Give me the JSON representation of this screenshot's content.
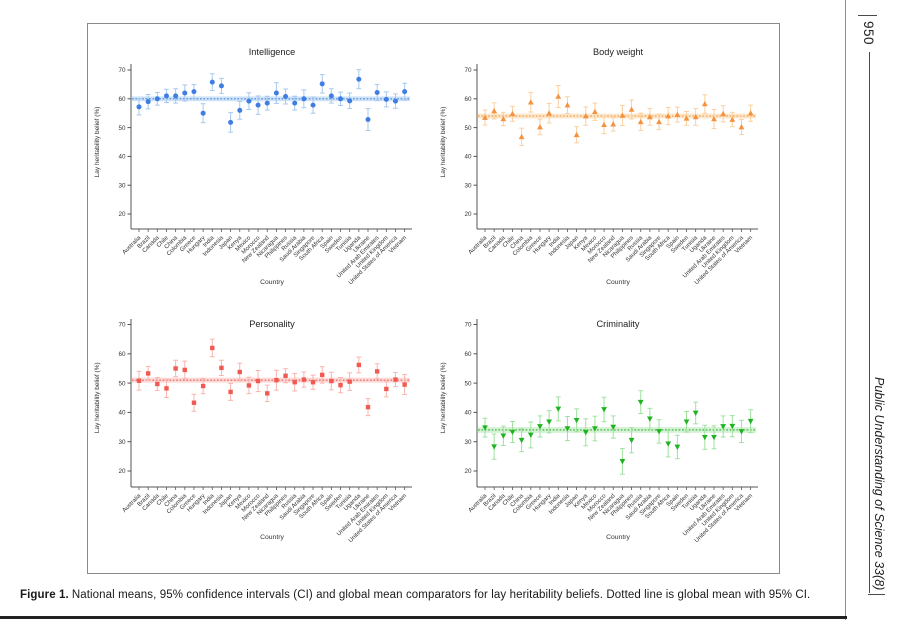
{
  "page": {
    "number": "950",
    "journal_running_title": "Public Understanding of Science 33(8)",
    "caption_label": "Figure 1.",
    "caption_text": "National means, 95% confidence intervals (CI) and global mean comparators for lay heritability beliefs. Dotted line is global mean with 95% CI."
  },
  "chart_data": {
    "type": "scatter",
    "xlabel": "Country",
    "ylabel": "Lay heritability belief (%)",
    "ylim": [
      15,
      74
    ],
    "yticks": [
      20,
      30,
      40,
      50,
      60,
      70
    ],
    "grid": false,
    "legend": false,
    "annotation": "dotted horizontal line = global mean with shaded 95% CI band",
    "categories": [
      "Australia",
      "Brazil",
      "Canada",
      "Chile",
      "China",
      "Colombia",
      "Greece",
      "Hungary",
      "India",
      "Indonesia",
      "Japan",
      "Kenya",
      "Mexico",
      "Morocco",
      "New Zealand",
      "Nicaragua",
      "Philippines",
      "Russia",
      "Saudi Arabia",
      "Singapore",
      "South Africa",
      "Spain",
      "Sweden",
      "Tunisia",
      "Uganda",
      "Ukraine",
      "United Arab Emirates",
      "United Kingdom",
      "United States of America",
      "Vietnam"
    ],
    "charts": [
      {
        "id": "intelligence",
        "title": "Intelligence",
        "marker": "circle",
        "global_mean": 60,
        "ci_band_halfwidth": 0.85,
        "colors": {
          "marker": "#3e7ee3",
          "whisker": "#a6c8f0",
          "band": "#cfe3f8",
          "mean_line": "#4a86d8"
        },
        "values": [
          57.2,
          59.0,
          60.0,
          61.0,
          61.0,
          62.0,
          62.5,
          55.0,
          65.8,
          64.5,
          51.8,
          56.0,
          59.2,
          57.8,
          58.5,
          62.0,
          60.8,
          58.5,
          60.0,
          57.8,
          65.2,
          61.0,
          60.0,
          59.3,
          66.8,
          52.8,
          62.2,
          59.8,
          59.2,
          62.5
        ],
        "ci95_halfwidth": [
          2.8,
          2.5,
          2.2,
          2.3,
          2.5,
          2.8,
          2.4,
          3.3,
          2.9,
          2.6,
          3.4,
          3.1,
          2.9,
          3.2,
          2.4,
          3.6,
          2.6,
          2.4,
          3.1,
          2.8,
          3.2,
          2.5,
          2.3,
          2.7,
          3.3,
          3.8,
          2.8,
          2.6,
          2.5,
          2.9
        ]
      },
      {
        "id": "bodyweight",
        "title": "Body weight",
        "marker": "triangle-up",
        "global_mean": 54,
        "ci_band_halfwidth": 0.85,
        "colors": {
          "marker": "#f5923e",
          "whisker": "#fad0a0",
          "band": "#fce7cb",
          "mean_line": "#f09a48"
        },
        "values": [
          53.5,
          55.8,
          53.0,
          54.8,
          46.8,
          58.8,
          50.2,
          55.0,
          60.8,
          57.8,
          47.5,
          54.0,
          55.5,
          51.0,
          51.2,
          54.2,
          56.3,
          52.0,
          53.7,
          52.0,
          54.0,
          54.5,
          53.2,
          53.7,
          58.2,
          53.0,
          54.8,
          52.8,
          50.2,
          55.0
        ],
        "ci95_halfwidth": [
          2.6,
          2.8,
          2.3,
          2.6,
          3.0,
          3.4,
          2.7,
          3.4,
          3.8,
          2.9,
          2.8,
          3.2,
          3.0,
          3.1,
          2.4,
          3.5,
          3.3,
          3.0,
          2.9,
          2.7,
          3.0,
          2.6,
          2.4,
          2.9,
          3.2,
          3.3,
          2.8,
          2.5,
          2.6,
          2.8
        ]
      },
      {
        "id": "personality",
        "title": "Personality",
        "marker": "square",
        "global_mean": 51,
        "ci_band_halfwidth": 0.85,
        "colors": {
          "marker": "#f05a52",
          "whisker": "#fab4ae",
          "band": "#fcd9d6",
          "mean_line": "#e85d55"
        },
        "values": [
          50.8,
          53.3,
          49.7,
          48.2,
          55.0,
          54.5,
          43.3,
          49.0,
          62.0,
          55.2,
          47.0,
          53.8,
          49.2,
          50.7,
          46.5,
          51.0,
          52.5,
          50.3,
          51.2,
          50.3,
          52.8,
          50.7,
          49.3,
          50.5,
          56.2,
          41.8,
          54.0,
          48.0,
          51.2,
          49.5
        ],
        "ci95_halfwidth": [
          3.2,
          2.4,
          2.2,
          3.1,
          2.8,
          3.0,
          2.9,
          2.6,
          3.0,
          2.6,
          2.9,
          3.0,
          2.8,
          3.6,
          2.8,
          3.4,
          2.4,
          3.0,
          2.6,
          2.4,
          2.8,
          3.0,
          2.6,
          3.0,
          2.7,
          2.9,
          2.6,
          2.7,
          2.4,
          3.4
        ]
      },
      {
        "id": "criminality",
        "title": "Criminality",
        "marker": "triangle-down",
        "global_mean": 34,
        "ci_band_halfwidth": 1.0,
        "colors": {
          "marker": "#1fb41f",
          "whisker": "#9fe29f",
          "band": "#d6f2d6",
          "mean_line": "#2fae2f"
        },
        "values": [
          34.8,
          28.3,
          32.0,
          33.3,
          30.5,
          32.3,
          35.2,
          36.8,
          41.2,
          34.5,
          37.3,
          33.2,
          34.5,
          41.0,
          35.0,
          23.3,
          30.5,
          43.5,
          37.8,
          33.5,
          29.3,
          28.2,
          36.8,
          39.8,
          31.5,
          31.5,
          35.2,
          35.3,
          33.5,
          37.0
        ],
        "ci95_halfwidth": [
          3.2,
          4.3,
          3.3,
          3.6,
          3.9,
          4.4,
          3.6,
          3.8,
          4.1,
          4.1,
          3.9,
          4.6,
          4.2,
          4.2,
          3.8,
          4.4,
          4.3,
          3.9,
          3.6,
          4.0,
          4.5,
          4.0,
          3.5,
          3.7,
          4.1,
          3.9,
          3.6,
          3.6,
          3.8,
          3.9
        ]
      }
    ]
  }
}
